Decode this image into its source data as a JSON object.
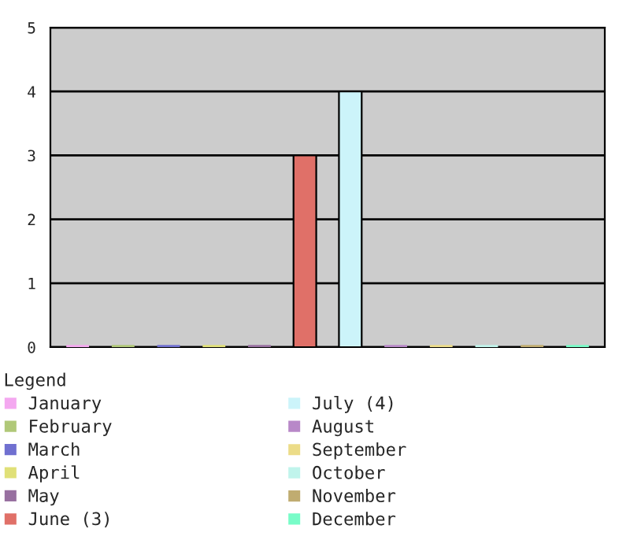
{
  "chart_data": {
    "type": "bar",
    "categories": [
      null,
      null,
      null,
      null,
      null,
      null,
      null,
      null,
      null,
      null,
      null,
      null
    ],
    "series": [
      {
        "name": "January",
        "color": "#f4a8f0",
        "values": [
          0,
          null,
          null,
          null,
          null,
          null,
          null,
          null,
          null,
          null,
          null,
          null
        ]
      },
      {
        "name": "February",
        "color": "#b0c878",
        "values": [
          null,
          0,
          null,
          null,
          null,
          null,
          null,
          null,
          null,
          null,
          null,
          null
        ]
      },
      {
        "name": "March",
        "color": "#7070d0",
        "values": [
          null,
          null,
          0,
          null,
          null,
          null,
          null,
          null,
          null,
          null,
          null,
          null
        ]
      },
      {
        "name": "April",
        "color": "#e0e078",
        "values": [
          null,
          null,
          null,
          0,
          null,
          null,
          null,
          null,
          null,
          null,
          null,
          null
        ]
      },
      {
        "name": "May",
        "color": "#9870a0",
        "values": [
          null,
          null,
          null,
          null,
          0,
          null,
          null,
          null,
          null,
          null,
          null,
          null
        ]
      },
      {
        "name": "June (3)",
        "color": "#e07068",
        "values": [
          null,
          null,
          null,
          null,
          null,
          3,
          null,
          null,
          null,
          null,
          null,
          null
        ]
      },
      {
        "name": "July (4)",
        "color": "#ccf4fa",
        "values": [
          null,
          null,
          null,
          null,
          null,
          null,
          4,
          null,
          null,
          null,
          null,
          null
        ]
      },
      {
        "name": "August",
        "color": "#b888c8",
        "values": [
          null,
          null,
          null,
          null,
          null,
          null,
          null,
          0,
          null,
          null,
          null,
          null
        ]
      },
      {
        "name": "September",
        "color": "#ecdc88",
        "values": [
          null,
          null,
          null,
          null,
          null,
          null,
          null,
          null,
          0,
          null,
          null,
          null
        ]
      },
      {
        "name": "October",
        "color": "#c0f4ec",
        "values": [
          null,
          null,
          null,
          null,
          null,
          null,
          null,
          null,
          null,
          0,
          null,
          null
        ]
      },
      {
        "name": "November",
        "color": "#c0ac70",
        "values": [
          null,
          null,
          null,
          null,
          null,
          null,
          null,
          null,
          null,
          null,
          0,
          null
        ]
      },
      {
        "name": "December",
        "color": "#78fcc8",
        "values": [
          null,
          null,
          null,
          null,
          null,
          null,
          null,
          null,
          null,
          null,
          null,
          0
        ]
      }
    ],
    "ylim": [
      0,
      5
    ],
    "yticks": [
      0,
      1,
      2,
      3,
      4,
      5
    ],
    "grid": "y",
    "legend": "bottom",
    "legend_title": "Legend",
    "tick_labels": "y"
  }
}
